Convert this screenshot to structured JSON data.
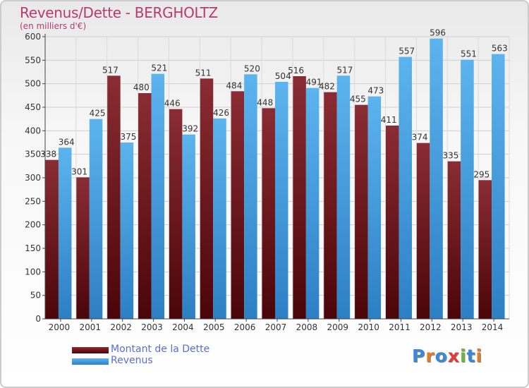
{
  "colors": {
    "debt": "#7a1f25",
    "revenue": "#3d9de0",
    "title": "#b83a6b",
    "legend_text": "#5a6ed8"
  },
  "logo": {
    "text": "Proxiti",
    "letter_colors": [
      "#3b88d6",
      "#e07b28",
      "#3b88d6",
      "#e03a3a",
      "#74b43c",
      "#3b88d6",
      "#e07b28"
    ]
  },
  "chart_data": {
    "type": "bar",
    "title": "Revenus/Dette - BERGHOLTZ",
    "subtitle": "(en milliers d'€)",
    "categories": [
      "2000",
      "2001",
      "2002",
      "2003",
      "2004",
      "2005",
      "2006",
      "2007",
      "2008",
      "2009",
      "2010",
      "2011",
      "2012",
      "2013",
      "2014"
    ],
    "series": [
      {
        "name": "Montant de la Dette",
        "color": "#7a1f25",
        "values": [
          338,
          301,
          517,
          480,
          446,
          511,
          484,
          448,
          516,
          482,
          455,
          411,
          374,
          335,
          295
        ]
      },
      {
        "name": "Revenus",
        "color": "#3d9de0",
        "values": [
          364,
          425,
          375,
          521,
          392,
          426,
          520,
          504,
          491,
          517,
          473,
          557,
          596,
          551,
          563
        ]
      }
    ],
    "yticks": [
      0,
      50,
      100,
      150,
      200,
      250,
      300,
      350,
      400,
      450,
      500,
      550,
      600
    ],
    "ylim": [
      0,
      600
    ],
    "grid": true,
    "legend_position": "bottom-left"
  }
}
